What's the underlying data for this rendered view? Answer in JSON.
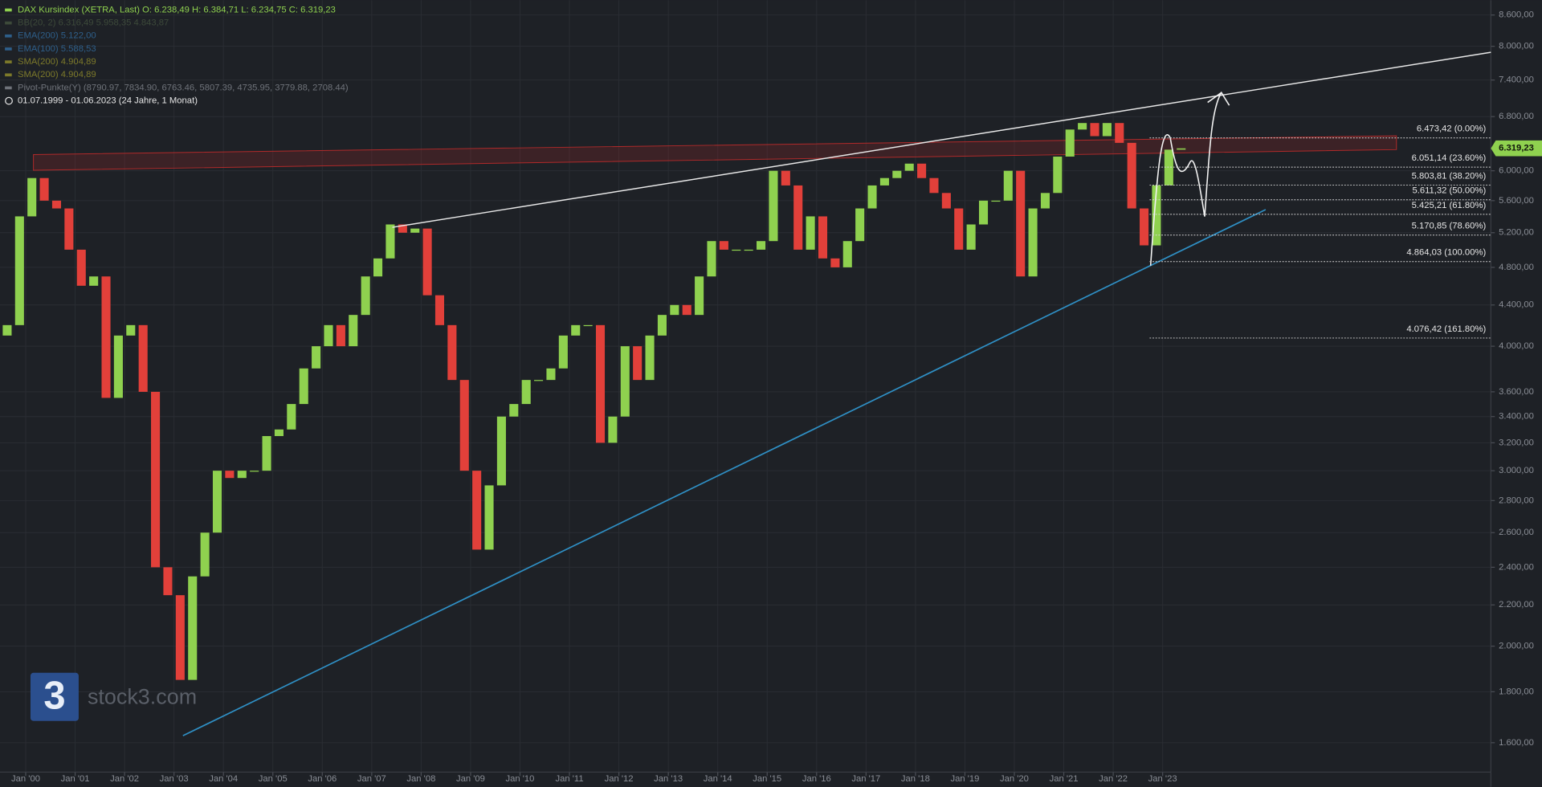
{
  "chart_data": {
    "type": "candlestick",
    "log_scale": true,
    "grid": true,
    "legend": [
      {
        "text": "DAX Kursindex (XETRA, Last)  O: 6.238,49  H: 6.384,71  L: 6.234,75  C: 6.319,23",
        "color": "#8fd14f"
      },
      {
        "text": "BB(20, 2)  6.316,49  5.958,35  4.843,87",
        "color": "#3d4a3a"
      },
      {
        "text": "EMA(200)  5.122,00",
        "color": "#2e5f8a"
      },
      {
        "text": "EMA(100)  5.588,53",
        "color": "#2e5f8a"
      },
      {
        "text": "SMA(200)  4.904,89",
        "color": "#7d7a2a"
      },
      {
        "text": "SMA(200)  4.904,89",
        "color": "#7d7a2a"
      },
      {
        "text": "Pivot-Punkte(Y)  (8790.97, 7834.90, 6763.46, 5807.39, 4735.95, 3779.88, 2708.44)",
        "color": "#6f737a"
      },
      {
        "text": "01.07.1999 - 01.06.2023  (24 Jahre, 1 Monat)",
        "color": "#e6e6e6"
      }
    ],
    "up_color": "#8fd14f",
    "down_color": "#e2403a",
    "x": [
      "1999-07",
      "1999-10",
      "2000-01",
      "2000-04",
      "2000-07",
      "2000-10",
      "2001-01",
      "2001-04",
      "2001-07",
      "2001-10",
      "2002-01",
      "2002-04",
      "2002-07",
      "2002-10",
      "2003-01",
      "2003-04",
      "2003-07",
      "2003-10",
      "2004-01",
      "2004-04",
      "2004-07",
      "2004-10",
      "2005-01",
      "2005-04",
      "2005-07",
      "2005-10",
      "2006-01",
      "2006-04",
      "2006-07",
      "2006-10",
      "2007-01",
      "2007-04",
      "2007-07",
      "2007-10",
      "2008-01",
      "2008-04",
      "2008-07",
      "2008-10",
      "2009-01",
      "2009-04",
      "2009-07",
      "2009-10",
      "2010-01",
      "2010-04",
      "2010-07",
      "2010-10",
      "2011-01",
      "2011-04",
      "2011-07",
      "2011-10",
      "2012-01",
      "2012-04",
      "2012-07",
      "2012-10",
      "2013-01",
      "2013-04",
      "2013-07",
      "2013-10",
      "2014-01",
      "2014-04",
      "2014-07",
      "2014-10",
      "2015-01",
      "2015-04",
      "2015-07",
      "2015-10",
      "2016-01",
      "2016-04",
      "2016-07",
      "2016-10",
      "2017-01",
      "2017-04",
      "2017-07",
      "2017-10",
      "2018-01",
      "2018-04",
      "2018-07",
      "2018-10",
      "2019-01",
      "2019-04",
      "2019-07",
      "2019-10",
      "2020-01",
      "2020-04",
      "2020-07",
      "2020-10",
      "2021-01",
      "2021-04",
      "2021-07",
      "2021-10",
      "2022-01",
      "2022-04",
      "2022-07",
      "2022-10",
      "2023-01",
      "2023-04"
    ],
    "first_open": 4100,
    "close": [
      4200,
      5400,
      5900,
      5600,
      5500,
      5000,
      4600,
      4700,
      3550,
      4100,
      4200,
      3600,
      2400,
      2250,
      1850,
      2350,
      2600,
      3000,
      2950,
      3000,
      3000,
      3250,
      3300,
      3500,
      3800,
      4000,
      4200,
      4000,
      4300,
      4700,
      4900,
      5300,
      5200,
      5250,
      4500,
      4200,
      3700,
      3000,
      2500,
      2900,
      3400,
      3500,
      3700,
      3700,
      3800,
      4100,
      4200,
      4200,
      3200,
      3400,
      4000,
      3700,
      4100,
      4300,
      4400,
      4300,
      4700,
      5100,
      5000,
      5000,
      5000,
      5100,
      6000,
      5800,
      5000,
      5400,
      4900,
      4800,
      5100,
      5500,
      5800,
      5900,
      6000,
      6100,
      5900,
      5700,
      5500,
      5000,
      5300,
      5600,
      5600,
      6000,
      4700,
      5500,
      5700,
      6200,
      6600,
      6700,
      6500,
      6700,
      6400,
      5500,
      5050,
      5800,
      6300,
      6319.23
    ],
    "xlim": [
      1999.48,
      2029.64
    ],
    "xticks": [
      {
        "value": 2000,
        "label": "Jan '00"
      },
      {
        "value": 2001,
        "label": "Jan '01"
      },
      {
        "value": 2002,
        "label": "Jan '02"
      },
      {
        "value": 2003,
        "label": "Jan '03"
      },
      {
        "value": 2004,
        "label": "Jan '04"
      },
      {
        "value": 2005,
        "label": "Jan '05"
      },
      {
        "value": 2006,
        "label": "Jan '06"
      },
      {
        "value": 2007,
        "label": "Jan '07"
      },
      {
        "value": 2008,
        "label": "Jan '08"
      },
      {
        "value": 2009,
        "label": "Jan '09"
      },
      {
        "value": 2010,
        "label": "Jan '10"
      },
      {
        "value": 2011,
        "label": "Jan '11"
      },
      {
        "value": 2012,
        "label": "Jan '12"
      },
      {
        "value": 2013,
        "label": "Jan '13"
      },
      {
        "value": 2014,
        "label": "Jan '14"
      },
      {
        "value": 2015,
        "label": "Jan '15"
      },
      {
        "value": 2016,
        "label": "Jan '16"
      },
      {
        "value": 2017,
        "label": "Jan '17"
      },
      {
        "value": 2018,
        "label": "Jan '18"
      },
      {
        "value": 2019,
        "label": "Jan '19"
      },
      {
        "value": 2020,
        "label": "Jan '20"
      },
      {
        "value": 2021,
        "label": "Jan '21"
      },
      {
        "value": 2022,
        "label": "Jan '22"
      },
      {
        "value": 2023,
        "label": "Jan '23"
      }
    ],
    "ylim": [
      1495,
      8900
    ],
    "yticks": [
      {
        "value": 8600,
        "label": "8.600,00"
      },
      {
        "value": 8000,
        "label": "8.000,00"
      },
      {
        "value": 7400,
        "label": "7.400,00"
      },
      {
        "value": 6800,
        "label": "6.800,00"
      },
      {
        "value": 6000,
        "label": "6.000,00"
      },
      {
        "value": 5600,
        "label": "5.600,00"
      },
      {
        "value": 5200,
        "label": "5.200,00"
      },
      {
        "value": 4800,
        "label": "4.800,00"
      },
      {
        "value": 4400,
        "label": "4.400,00"
      },
      {
        "value": 4000,
        "label": "4.000,00"
      },
      {
        "value": 3600,
        "label": "3.600,00"
      },
      {
        "value": 3400,
        "label": "3.400,00"
      },
      {
        "value": 3200,
        "label": "3.200,00"
      },
      {
        "value": 3000,
        "label": "3.000,00"
      },
      {
        "value": 2800,
        "label": "2.800,00"
      },
      {
        "value": 2600,
        "label": "2.600,00"
      },
      {
        "value": 2400,
        "label": "2.400,00"
      },
      {
        "value": 2200,
        "label": "2.200,00"
      },
      {
        "value": 2000,
        "label": "2.000,00"
      },
      {
        "value": 1800,
        "label": "1.800,00"
      },
      {
        "value": 1600,
        "label": "1.600,00"
      }
    ],
    "fib_levels": [
      {
        "value": 6473.42,
        "label": "6.473,42 (0.00%)"
      },
      {
        "value": 6051.14,
        "label": "6.051,14 (23.60%)"
      },
      {
        "value": 5803.81,
        "label": "5.803,81 (38.20%)"
      },
      {
        "value": 5611.32,
        "label": "5.611,32 (50.00%)"
      },
      {
        "value": 5425.21,
        "label": "5.425,21 (61.80%)"
      },
      {
        "value": 5170.85,
        "label": "5.170,85 (78.60%)"
      },
      {
        "value": 4864.03,
        "label": "4.864,03 (100.00%)"
      },
      {
        "value": 4076.42,
        "label": "4.076,42 (161.80%)"
      }
    ],
    "last_price": {
      "value": 6319.23,
      "label": "6.319,23"
    },
    "watermark": {
      "logo": "3",
      "text": "stock3.com"
    }
  }
}
